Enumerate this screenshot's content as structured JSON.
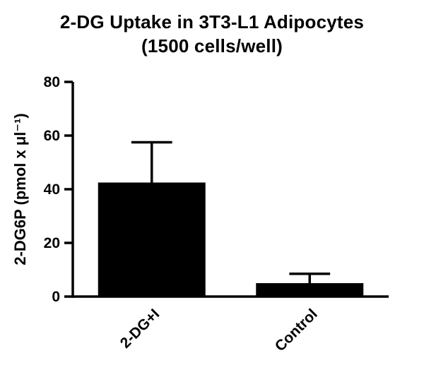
{
  "chart_data": {
    "type": "bar",
    "title": "2-DG Uptake in 3T3-L1 Adipocytes",
    "subtitle": "(1500 cells/well)",
    "categories": [
      "2-DG+I",
      "Control"
    ],
    "values": [
      42.5,
      5
    ],
    "errors_plus": [
      15,
      3.5
    ],
    "ylabel": "2-DG6P (pmol x μl⁻¹)",
    "xlabel": "",
    "ylim": [
      0,
      80
    ],
    "yticks": [
      0,
      20,
      40,
      60,
      80
    ],
    "bar_color": "#000000",
    "axis_color": "#000000",
    "grid": false,
    "legend": false,
    "x_tick_rotation": -45
  }
}
